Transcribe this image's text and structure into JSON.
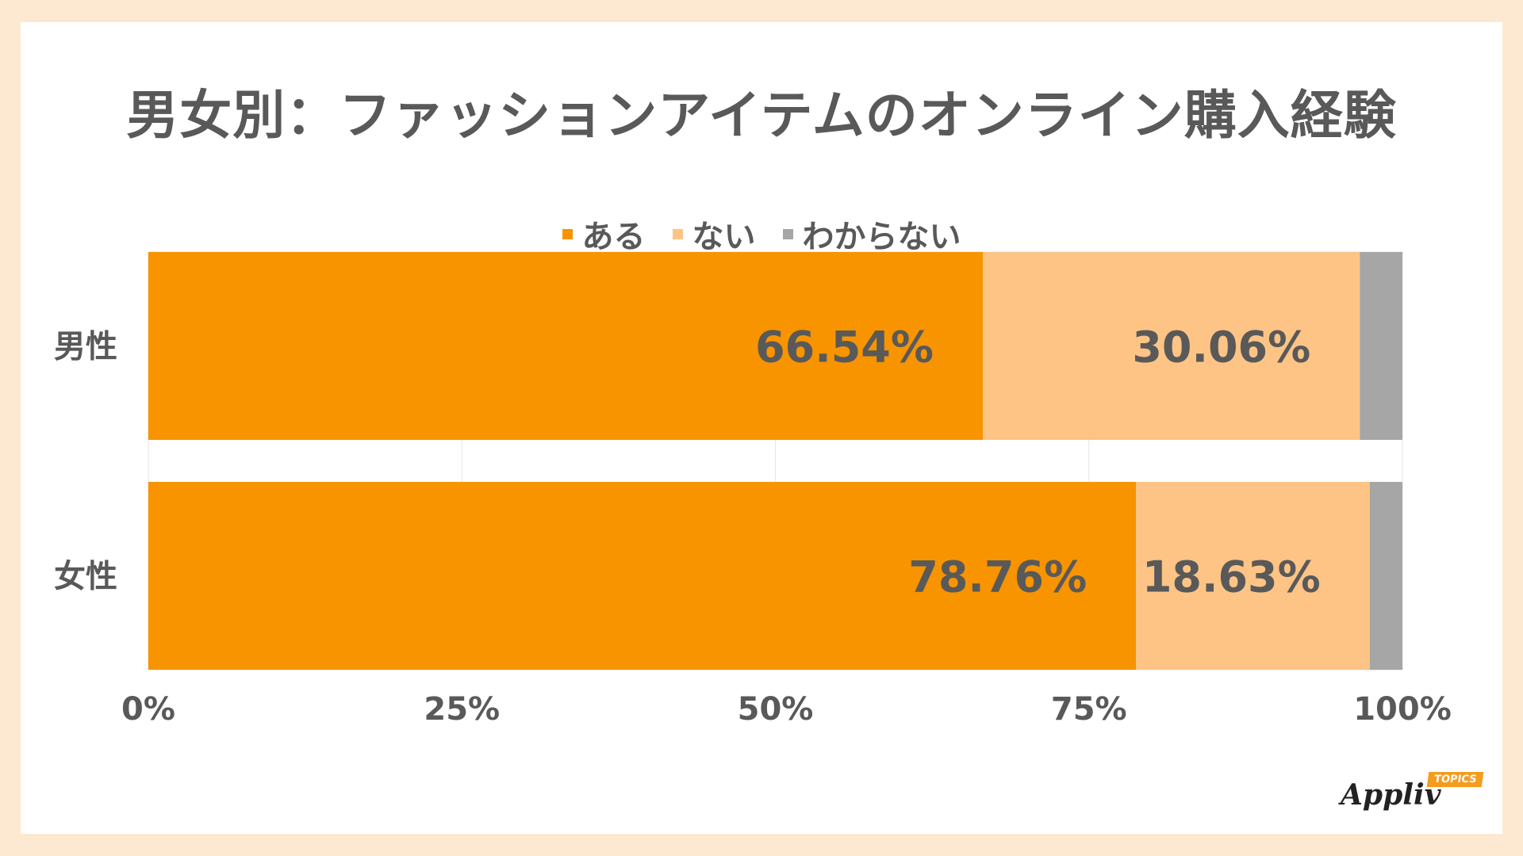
{
  "chart_data": {
    "type": "bar",
    "orientation": "horizontal",
    "stacked": true,
    "title": "男女別：ファッションアイテムのオンライン購入経験",
    "categories": [
      "男性",
      "女性"
    ],
    "series": [
      {
        "name": "ある",
        "values": [
          66.54,
          78.76
        ],
        "labels": [
          "66.54%",
          "78.76%"
        ],
        "color": "#f79400"
      },
      {
        "name": "ない",
        "values": [
          30.06,
          18.63
        ],
        "labels": [
          "30.06%",
          "18.63%"
        ],
        "color": "#fdc485"
      },
      {
        "name": "わからない",
        "values": [
          3.4,
          2.61
        ],
        "labels": [
          "",
          ""
        ],
        "color": "#a6a6a6"
      }
    ],
    "xlim": [
      0,
      100
    ],
    "xticks": [
      "0%",
      "25%",
      "50%",
      "75%",
      "100%"
    ],
    "grid": true,
    "legend": "top-center"
  },
  "colors": {
    "background": "#fde9d2",
    "card": "#ffffff",
    "text": "#595959",
    "gridline": "#e6e6e6"
  },
  "logo": {
    "text": "Appliv",
    "tag": "TOPICS"
  }
}
